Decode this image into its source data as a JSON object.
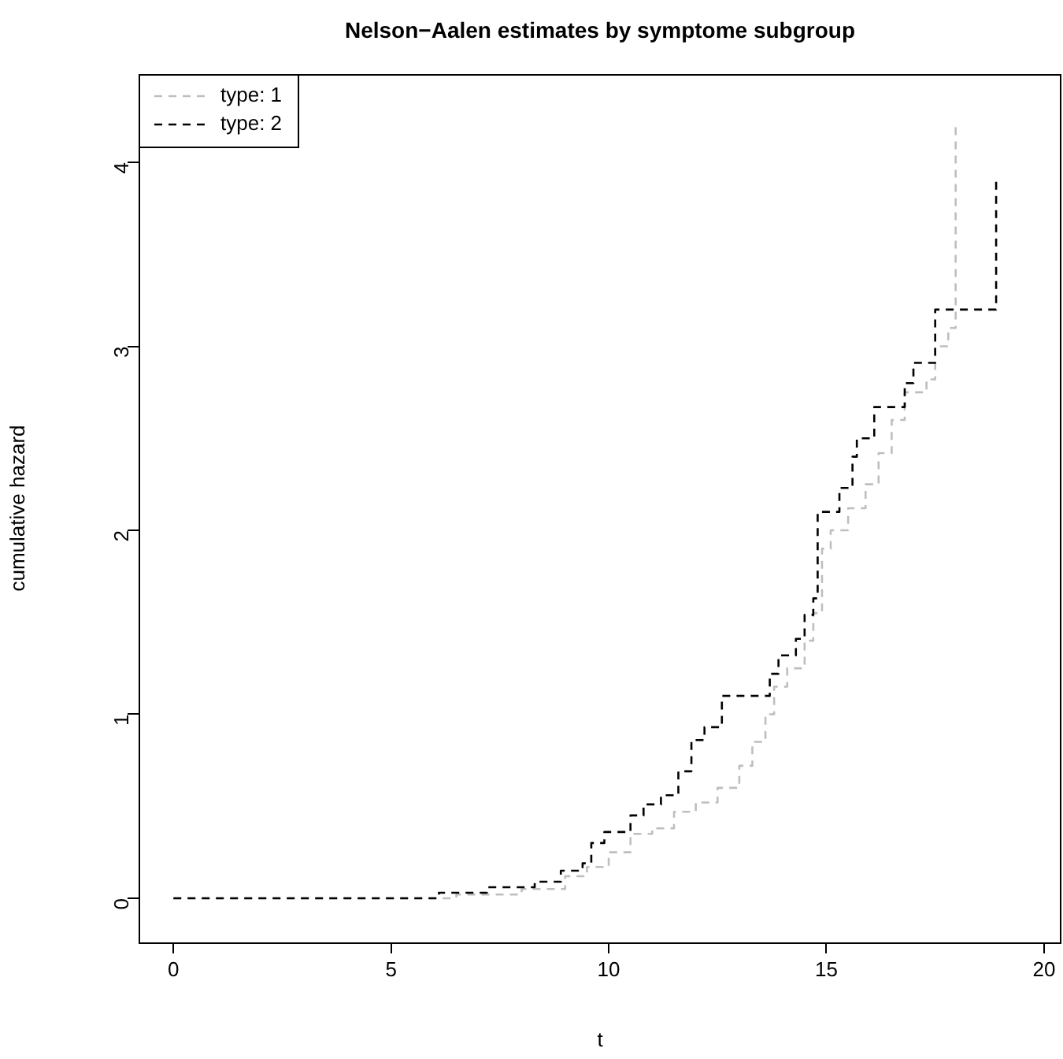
{
  "chart_data": {
    "type": "step",
    "title": "Nelson−Aalen estimates by symptome subgroup",
    "xlabel": "t",
    "ylabel": "cumulative hazard",
    "xlim": [
      -0.8,
      20.4
    ],
    "xticks": [
      0,
      5,
      10,
      15,
      20
    ],
    "ylim": [
      -0.24,
      4.48
    ],
    "yticks": [
      0,
      1,
      2,
      3,
      4
    ],
    "grid": false,
    "legend": "top left",
    "line_style": "dashed",
    "marker": "none",
    "series": [
      {
        "name": "type: 1",
        "color": "#bebebe",
        "x": [
          0,
          5.2,
          6.5,
          8,
          9,
          9.5,
          10,
          10.5,
          11,
          11.5,
          12,
          12.5,
          13,
          13.3,
          13.6,
          13.8,
          14.1,
          14.5,
          14.7,
          14.9,
          15.1,
          15.5,
          15.9,
          16.2,
          16.5,
          16.8,
          17.3,
          17.5,
          17.8,
          17.97
        ],
        "values": [
          0,
          0,
          0.02,
          0.05,
          0.12,
          0.17,
          0.25,
          0.35,
          0.38,
          0.47,
          0.52,
          0.6,
          0.72,
          0.85,
          1.0,
          1.15,
          1.25,
          1.4,
          1.55,
          1.9,
          2.0,
          2.12,
          2.25,
          2.42,
          2.6,
          2.75,
          2.82,
          3.0,
          3.1,
          4.2
        ]
      },
      {
        "name": "type: 2",
        "color": "#000000",
        "x": [
          0,
          5.2,
          6.1,
          7.2,
          8.3,
          8.9,
          9.4,
          9.6,
          9.9,
          10.5,
          10.8,
          11.2,
          11.6,
          11.9,
          12.2,
          12.6,
          13.7,
          13.9,
          14.3,
          14.5,
          14.7,
          14.8,
          15.3,
          15.6,
          15.7,
          16.1,
          16.8,
          17.0,
          17.5,
          18.9
        ],
        "values": [
          0,
          0,
          0.03,
          0.06,
          0.09,
          0.15,
          0.19,
          0.3,
          0.36,
          0.45,
          0.51,
          0.56,
          0.69,
          0.86,
          0.93,
          1.1,
          1.22,
          1.32,
          1.41,
          1.54,
          1.63,
          2.1,
          2.23,
          2.4,
          2.5,
          2.67,
          2.8,
          2.91,
          3.2,
          3.9
        ]
      }
    ]
  }
}
